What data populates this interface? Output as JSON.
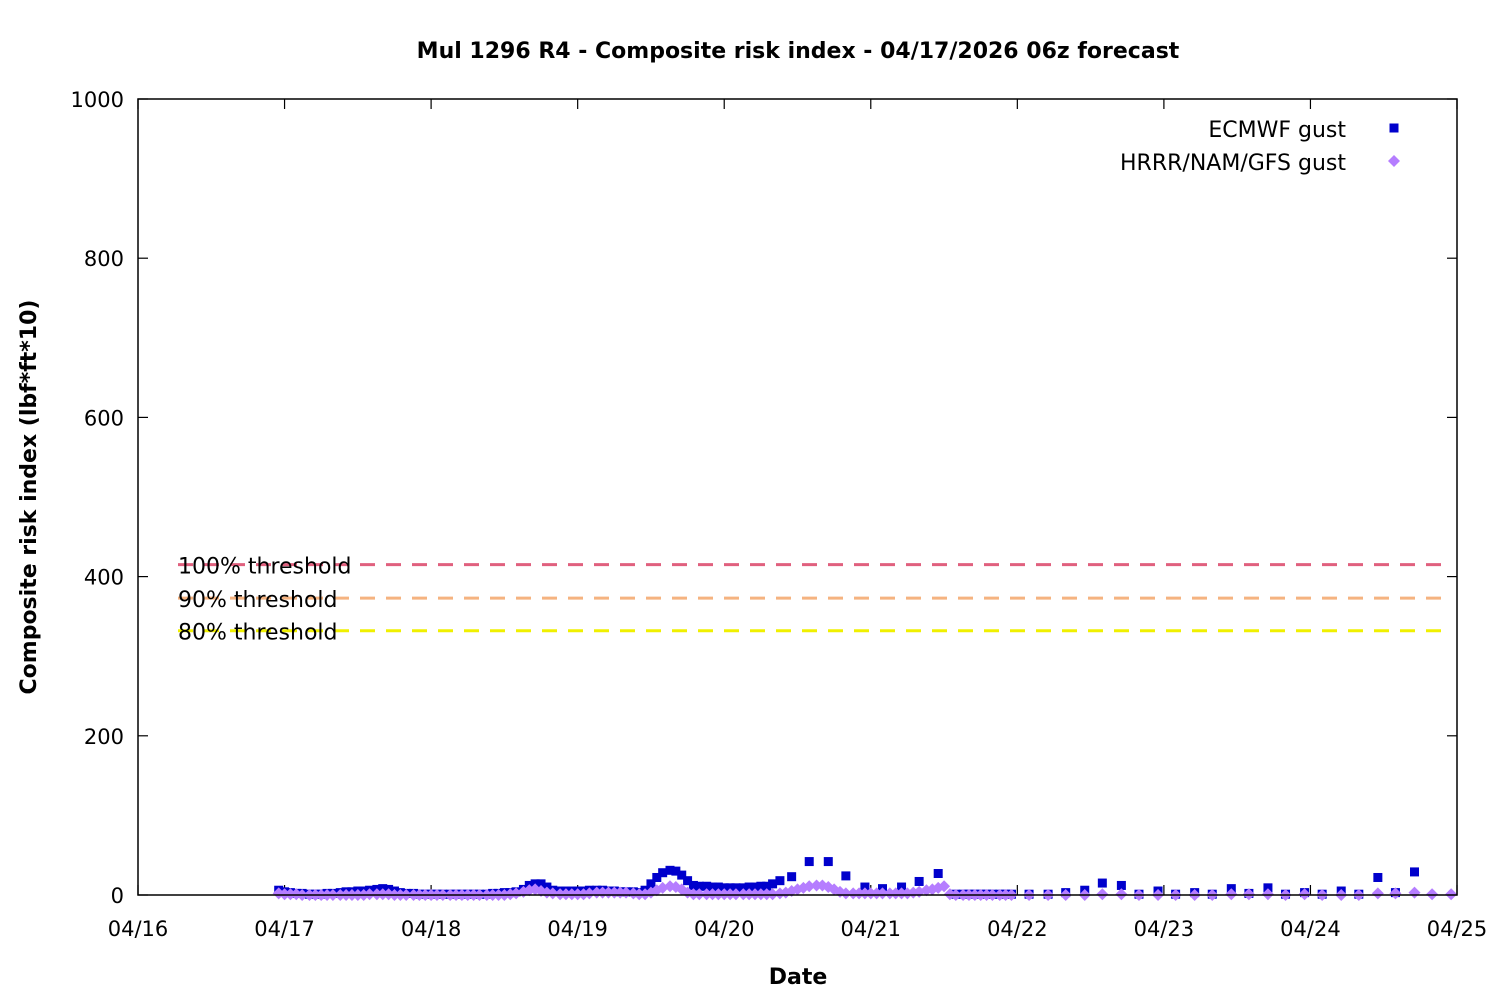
{
  "chart_data": {
    "type": "scatter",
    "title": "Mul 1296 R4 - Composite risk index - 04/17/2026 06z forecast",
    "xlabel": "Date",
    "ylabel": "Composite risk index (lbf*ft*10)",
    "xlim": [
      0,
      9
    ],
    "ylim": [
      0,
      1000
    ],
    "x_ticks": [
      {
        "value": 0,
        "label": "04/16"
      },
      {
        "value": 1,
        "label": "04/17"
      },
      {
        "value": 2,
        "label": "04/18"
      },
      {
        "value": 3,
        "label": "04/19"
      },
      {
        "value": 4,
        "label": "04/20"
      },
      {
        "value": 5,
        "label": "04/21"
      },
      {
        "value": 6,
        "label": "04/22"
      },
      {
        "value": 7,
        "label": "04/23"
      },
      {
        "value": 8,
        "label": "04/24"
      },
      {
        "value": 9,
        "label": "04/25"
      }
    ],
    "y_ticks": [
      {
        "value": 0,
        "label": "0"
      },
      {
        "value": 200,
        "label": "200"
      },
      {
        "value": 400,
        "label": "400"
      },
      {
        "value": 600,
        "label": "600"
      },
      {
        "value": 800,
        "label": "800"
      },
      {
        "value": 1000,
        "label": "1000"
      }
    ],
    "thresholds": [
      {
        "label": "100% threshold",
        "value": 415,
        "color": "#e0607e"
      },
      {
        "label": "90% threshold",
        "value": 373,
        "color": "#f5b380"
      },
      {
        "label": "80% threshold",
        "value": 332,
        "color": "#f0f000"
      }
    ],
    "legend_position": "top-right",
    "grid": false,
    "series": [
      {
        "name": "ECMWF gust",
        "marker": "square",
        "color": "#0000cc",
        "points": [
          [
            0.96,
            6
          ],
          [
            1.0,
            4
          ],
          [
            1.04,
            3
          ],
          [
            1.08,
            2
          ],
          [
            1.12,
            2
          ],
          [
            1.17,
            1
          ],
          [
            1.21,
            1
          ],
          [
            1.25,
            1
          ],
          [
            1.29,
            2
          ],
          [
            1.33,
            2
          ],
          [
            1.38,
            3
          ],
          [
            1.42,
            4
          ],
          [
            1.46,
            4
          ],
          [
            1.5,
            5
          ],
          [
            1.54,
            5
          ],
          [
            1.58,
            6
          ],
          [
            1.63,
            7
          ],
          [
            1.67,
            8
          ],
          [
            1.71,
            7
          ],
          [
            1.75,
            5
          ],
          [
            1.79,
            3
          ],
          [
            1.83,
            2
          ],
          [
            1.88,
            2
          ],
          [
            1.92,
            1
          ],
          [
            1.96,
            1
          ],
          [
            2.0,
            1
          ],
          [
            2.04,
            1
          ],
          [
            2.08,
            1
          ],
          [
            2.13,
            1
          ],
          [
            2.17,
            1
          ],
          [
            2.21,
            1
          ],
          [
            2.25,
            1
          ],
          [
            2.29,
            1
          ],
          [
            2.33,
            1
          ],
          [
            2.38,
            1
          ],
          [
            2.42,
            2
          ],
          [
            2.46,
            2
          ],
          [
            2.5,
            3
          ],
          [
            2.54,
            3
          ],
          [
            2.58,
            4
          ],
          [
            2.63,
            7
          ],
          [
            2.67,
            12
          ],
          [
            2.71,
            14
          ],
          [
            2.75,
            14
          ],
          [
            2.79,
            10
          ],
          [
            2.83,
            6
          ],
          [
            2.88,
            5
          ],
          [
            2.92,
            5
          ],
          [
            2.96,
            5
          ],
          [
            3.0,
            5
          ],
          [
            3.04,
            5
          ],
          [
            3.08,
            6
          ],
          [
            3.13,
            6
          ],
          [
            3.17,
            6
          ],
          [
            3.21,
            5
          ],
          [
            3.25,
            5
          ],
          [
            3.29,
            4
          ],
          [
            3.33,
            4
          ],
          [
            3.38,
            4
          ],
          [
            3.42,
            3
          ],
          [
            3.46,
            6
          ],
          [
            3.5,
            14
          ],
          [
            3.54,
            22
          ],
          [
            3.58,
            28
          ],
          [
            3.63,
            31
          ],
          [
            3.67,
            30
          ],
          [
            3.71,
            25
          ],
          [
            3.75,
            18
          ],
          [
            3.79,
            12
          ],
          [
            3.83,
            11
          ],
          [
            3.88,
            11
          ],
          [
            3.92,
            10
          ],
          [
            3.96,
            10
          ],
          [
            4.0,
            9
          ],
          [
            4.04,
            9
          ],
          [
            4.08,
            9
          ],
          [
            4.13,
            9
          ],
          [
            4.17,
            10
          ],
          [
            4.21,
            10
          ],
          [
            4.25,
            11
          ],
          [
            4.29,
            11
          ],
          [
            4.33,
            14
          ],
          [
            4.38,
            18
          ],
          [
            4.46,
            23
          ],
          [
            4.58,
            42
          ],
          [
            4.71,
            42
          ],
          [
            4.83,
            24
          ],
          [
            4.96,
            10
          ],
          [
            5.08,
            8
          ],
          [
            5.21,
            10
          ],
          [
            5.33,
            17
          ],
          [
            5.46,
            27
          ],
          [
            5.58,
            1
          ],
          [
            5.63,
            1
          ],
          [
            5.67,
            1
          ],
          [
            5.71,
            1
          ],
          [
            5.75,
            1
          ],
          [
            5.79,
            1
          ],
          [
            5.83,
            1
          ],
          [
            5.88,
            1
          ],
          [
            5.92,
            1
          ],
          [
            5.96,
            1
          ],
          [
            6.08,
            1
          ],
          [
            6.21,
            1
          ],
          [
            6.33,
            3
          ],
          [
            6.46,
            6
          ],
          [
            6.58,
            15
          ],
          [
            6.71,
            12
          ],
          [
            6.83,
            1
          ],
          [
            6.96,
            5
          ],
          [
            7.08,
            1
          ],
          [
            7.21,
            3
          ],
          [
            7.33,
            1
          ],
          [
            7.46,
            8
          ],
          [
            7.58,
            2
          ],
          [
            7.71,
            9
          ],
          [
            7.83,
            1
          ],
          [
            7.96,
            3
          ],
          [
            8.08,
            1
          ],
          [
            8.21,
            5
          ],
          [
            8.33,
            1
          ],
          [
            8.46,
            22
          ],
          [
            8.58,
            3
          ],
          [
            8.71,
            29
          ]
        ]
      },
      {
        "name": "HRRR/NAM/GFS gust",
        "marker": "diamond",
        "color": "#b57dff",
        "points": [
          [
            0.96,
            2
          ],
          [
            1.0,
            1
          ],
          [
            1.04,
            1
          ],
          [
            1.08,
            1
          ],
          [
            1.12,
            0
          ],
          [
            1.17,
            0
          ],
          [
            1.21,
            0
          ],
          [
            1.25,
            0
          ],
          [
            1.29,
            0
          ],
          [
            1.33,
            0
          ],
          [
            1.38,
            0
          ],
          [
            1.42,
            0
          ],
          [
            1.46,
            0
          ],
          [
            1.5,
            0
          ],
          [
            1.54,
            0
          ],
          [
            1.58,
            1
          ],
          [
            1.63,
            1
          ],
          [
            1.67,
            1
          ],
          [
            1.71,
            1
          ],
          [
            1.75,
            0
          ],
          [
            1.79,
            0
          ],
          [
            1.83,
            0
          ],
          [
            1.88,
            0
          ],
          [
            1.92,
            0
          ],
          [
            1.96,
            0
          ],
          [
            2.0,
            0
          ],
          [
            2.04,
            0
          ],
          [
            2.08,
            0
          ],
          [
            2.13,
            0
          ],
          [
            2.17,
            0
          ],
          [
            2.21,
            0
          ],
          [
            2.25,
            0
          ],
          [
            2.29,
            0
          ],
          [
            2.33,
            0
          ],
          [
            2.38,
            0
          ],
          [
            2.42,
            0
          ],
          [
            2.46,
            0
          ],
          [
            2.5,
            0
          ],
          [
            2.54,
            1
          ],
          [
            2.58,
            2
          ],
          [
            2.63,
            4
          ],
          [
            2.67,
            6
          ],
          [
            2.71,
            7
          ],
          [
            2.75,
            5
          ],
          [
            2.79,
            3
          ],
          [
            2.83,
            2
          ],
          [
            2.88,
            1
          ],
          [
            2.92,
            1
          ],
          [
            2.96,
            1
          ],
          [
            3.0,
            1
          ],
          [
            3.04,
            1
          ],
          [
            3.08,
            2
          ],
          [
            3.13,
            3
          ],
          [
            3.17,
            3
          ],
          [
            3.21,
            3
          ],
          [
            3.25,
            3
          ],
          [
            3.29,
            3
          ],
          [
            3.33,
            3
          ],
          [
            3.38,
            2
          ],
          [
            3.42,
            1
          ],
          [
            3.46,
            1
          ],
          [
            3.5,
            3
          ],
          [
            3.54,
            6
          ],
          [
            3.58,
            9
          ],
          [
            3.63,
            11
          ],
          [
            3.67,
            10
          ],
          [
            3.71,
            7
          ],
          [
            3.75,
            3
          ],
          [
            3.79,
            1
          ],
          [
            3.83,
            1
          ],
          [
            3.88,
            1
          ],
          [
            3.92,
            1
          ],
          [
            3.96,
            1
          ],
          [
            4.0,
            1
          ],
          [
            4.04,
            1
          ],
          [
            4.08,
            1
          ],
          [
            4.13,
            1
          ],
          [
            4.17,
            1
          ],
          [
            4.21,
            1
          ],
          [
            4.25,
            1
          ],
          [
            4.29,
            1
          ],
          [
            4.33,
            1
          ],
          [
            4.38,
            2
          ],
          [
            4.42,
            3
          ],
          [
            4.46,
            5
          ],
          [
            4.5,
            7
          ],
          [
            4.54,
            9
          ],
          [
            4.58,
            11
          ],
          [
            4.63,
            12
          ],
          [
            4.67,
            12
          ],
          [
            4.71,
            10
          ],
          [
            4.75,
            7
          ],
          [
            4.79,
            4
          ],
          [
            4.83,
            2
          ],
          [
            4.88,
            2
          ],
          [
            4.92,
            2
          ],
          [
            4.96,
            2
          ],
          [
            5.0,
            2
          ],
          [
            5.04,
            2
          ],
          [
            5.08,
            2
          ],
          [
            5.13,
            2
          ],
          [
            5.17,
            2
          ],
          [
            5.21,
            2
          ],
          [
            5.25,
            2
          ],
          [
            5.29,
            3
          ],
          [
            5.33,
            4
          ],
          [
            5.38,
            6
          ],
          [
            5.42,
            7
          ],
          [
            5.46,
            9
          ],
          [
            5.5,
            11
          ],
          [
            5.54,
            1
          ],
          [
            5.58,
            0
          ],
          [
            5.63,
            0
          ],
          [
            5.67,
            0
          ],
          [
            5.71,
            0
          ],
          [
            5.75,
            0
          ],
          [
            5.79,
            0
          ],
          [
            5.83,
            0
          ],
          [
            5.88,
            0
          ],
          [
            5.92,
            0
          ],
          [
            5.96,
            0
          ],
          [
            6.08,
            0
          ],
          [
            6.21,
            0
          ],
          [
            6.33,
            0
          ],
          [
            6.46,
            0
          ],
          [
            6.58,
            1
          ],
          [
            6.71,
            1
          ],
          [
            6.83,
            0
          ],
          [
            6.96,
            0
          ],
          [
            7.08,
            0
          ],
          [
            7.21,
            0
          ],
          [
            7.33,
            0
          ],
          [
            7.46,
            1
          ],
          [
            7.58,
            1
          ],
          [
            7.71,
            1
          ],
          [
            7.83,
            0
          ],
          [
            7.96,
            1
          ],
          [
            8.08,
            0
          ],
          [
            8.21,
            0
          ],
          [
            8.33,
            0
          ],
          [
            8.46,
            2
          ],
          [
            8.58,
            2
          ],
          [
            8.71,
            3
          ],
          [
            8.83,
            1
          ],
          [
            8.96,
            1
          ]
        ]
      }
    ]
  }
}
